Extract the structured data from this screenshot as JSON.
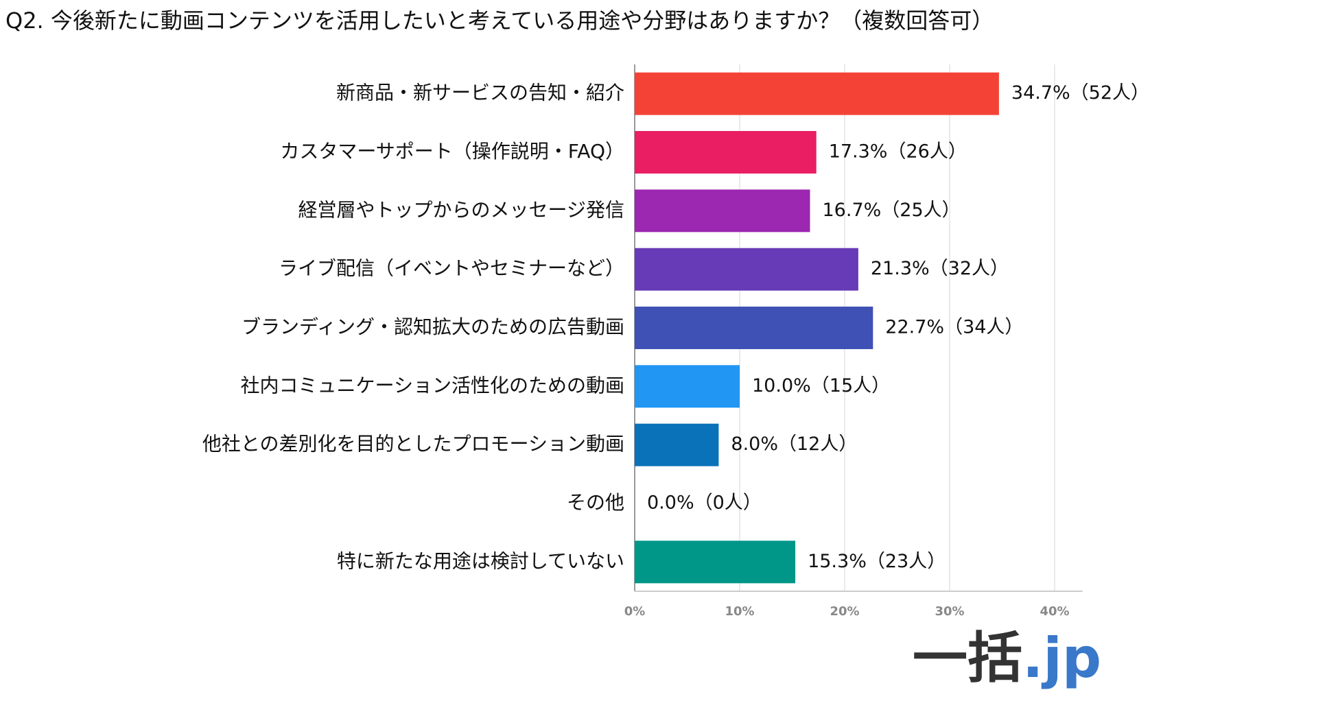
{
  "chart_data": {
    "type": "barh",
    "title": "Q2. 今後新たに動画コンテンツを活用したいと考えている用途や分野はありますか？（複数回答可）",
    "categories": [
      "新商品・新サービスの告知・紹介",
      "カスタマーサポート（操作説明・FAQ）",
      "経営層やトップからのメッセージ発信",
      "ライブ配信（イベントやセミナーなど）",
      "ブランディング・認知拡大のための広告動画",
      "社内コミュニケーション活性化のための動画",
      "他社との差別化を目的としたプロモーション動画",
      "その他",
      "特に新たな用途は検討していない"
    ],
    "values": [
      34.7,
      17.3,
      16.7,
      21.3,
      22.7,
      10.0,
      8.0,
      0.0,
      15.3
    ],
    "value_labels": [
      "34.7%（52人）",
      "17.3%（26人）",
      "16.7%（25人）",
      "21.3%（32人）",
      "22.7%（34人）",
      "10.0%（15人）",
      "8.0%（12人）",
      "0.0%（0人）",
      "15.3%（23人）"
    ],
    "colors": [
      "#f44336",
      "#e91e63",
      "#9c27b0",
      "#673ab7",
      "#3f51b5",
      "#2196f3",
      "#0a72b8",
      "#9e9e9e",
      "#009688"
    ],
    "xlim": [
      0,
      42
    ],
    "xticks": [
      {
        "value": 0,
        "label": "0%"
      },
      {
        "value": 10,
        "label": "10%"
      },
      {
        "value": 20,
        "label": "20%"
      },
      {
        "value": 30,
        "label": "30%"
      },
      {
        "value": 40,
        "label": "40%"
      }
    ],
    "grid": true
  },
  "logo": {
    "main": "一括",
    "suffix": ".jp"
  }
}
